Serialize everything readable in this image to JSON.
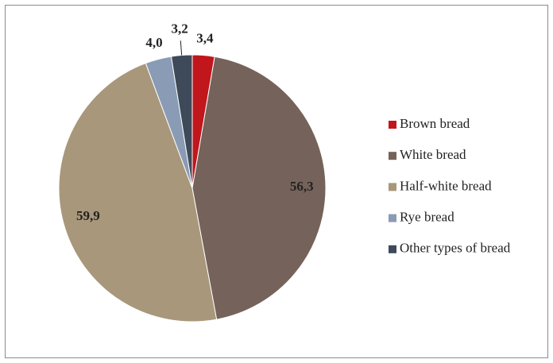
{
  "chart_data": {
    "type": "pie",
    "categories": [
      "Brown bread",
      "White bread",
      "Half-white bread",
      "Rye bread",
      "Other types of bread"
    ],
    "values": [
      3.4,
      56.3,
      59.9,
      4.0,
      3.2
    ],
    "value_labels": [
      "3,4",
      "56,3",
      "59,9",
      "4,0",
      "3,2"
    ],
    "colors": [
      "#c0161c",
      "#75625a",
      "#a8977a",
      "#8a9bb5",
      "#3e4a59"
    ],
    "legend": "right"
  }
}
